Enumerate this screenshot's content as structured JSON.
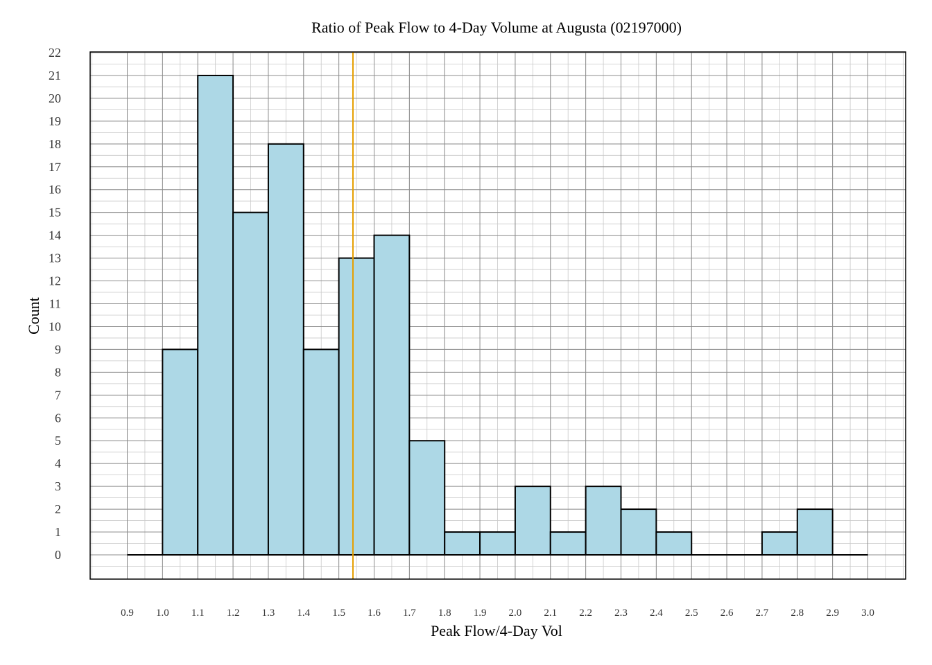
{
  "chart_data": {
    "type": "bar",
    "title": "Ratio of Peak Flow to 4-Day Volume at Augusta (02197000)",
    "xlabel": "Peak Flow/4-Day Vol",
    "ylabel": "Count",
    "bin_edges": [
      0.9,
      1.0,
      1.1,
      1.2,
      1.3,
      1.4,
      1.5,
      1.6,
      1.7,
      1.8,
      1.9,
      2.0,
      2.1,
      2.2,
      2.3,
      2.4,
      2.5,
      2.6,
      2.7,
      2.8,
      2.9,
      3.0
    ],
    "values": [
      0,
      9,
      21,
      15,
      18,
      9,
      13,
      14,
      5,
      1,
      1,
      3,
      1,
      3,
      2,
      1,
      0,
      0,
      1,
      2,
      0
    ],
    "xlim": [
      0.9,
      3.0
    ],
    "ylim": [
      0,
      22
    ],
    "x_ticks": [
      "0.9",
      "1.0",
      "1.1",
      "1.2",
      "1.3",
      "1.4",
      "1.5",
      "1.6",
      "1.7",
      "1.8",
      "1.9",
      "2.0",
      "2.1",
      "2.2",
      "2.3",
      "2.4",
      "2.5",
      "2.6",
      "2.7",
      "2.8",
      "2.9",
      "3.0"
    ],
    "y_ticks": [
      "0",
      "1",
      "2",
      "3",
      "4",
      "5",
      "6",
      "7",
      "8",
      "9",
      "10",
      "11",
      "12",
      "13",
      "14",
      "15",
      "16",
      "17",
      "18",
      "19",
      "20",
      "21",
      "22"
    ],
    "reference_line_x": 1.54,
    "grid": true,
    "colors": {
      "bar_fill": "#add8e6",
      "bar_stroke": "#000000",
      "reference_line": "#e69f00",
      "grid_major": "#8c8c8c",
      "grid_minor": "#c8c8c8"
    }
  }
}
